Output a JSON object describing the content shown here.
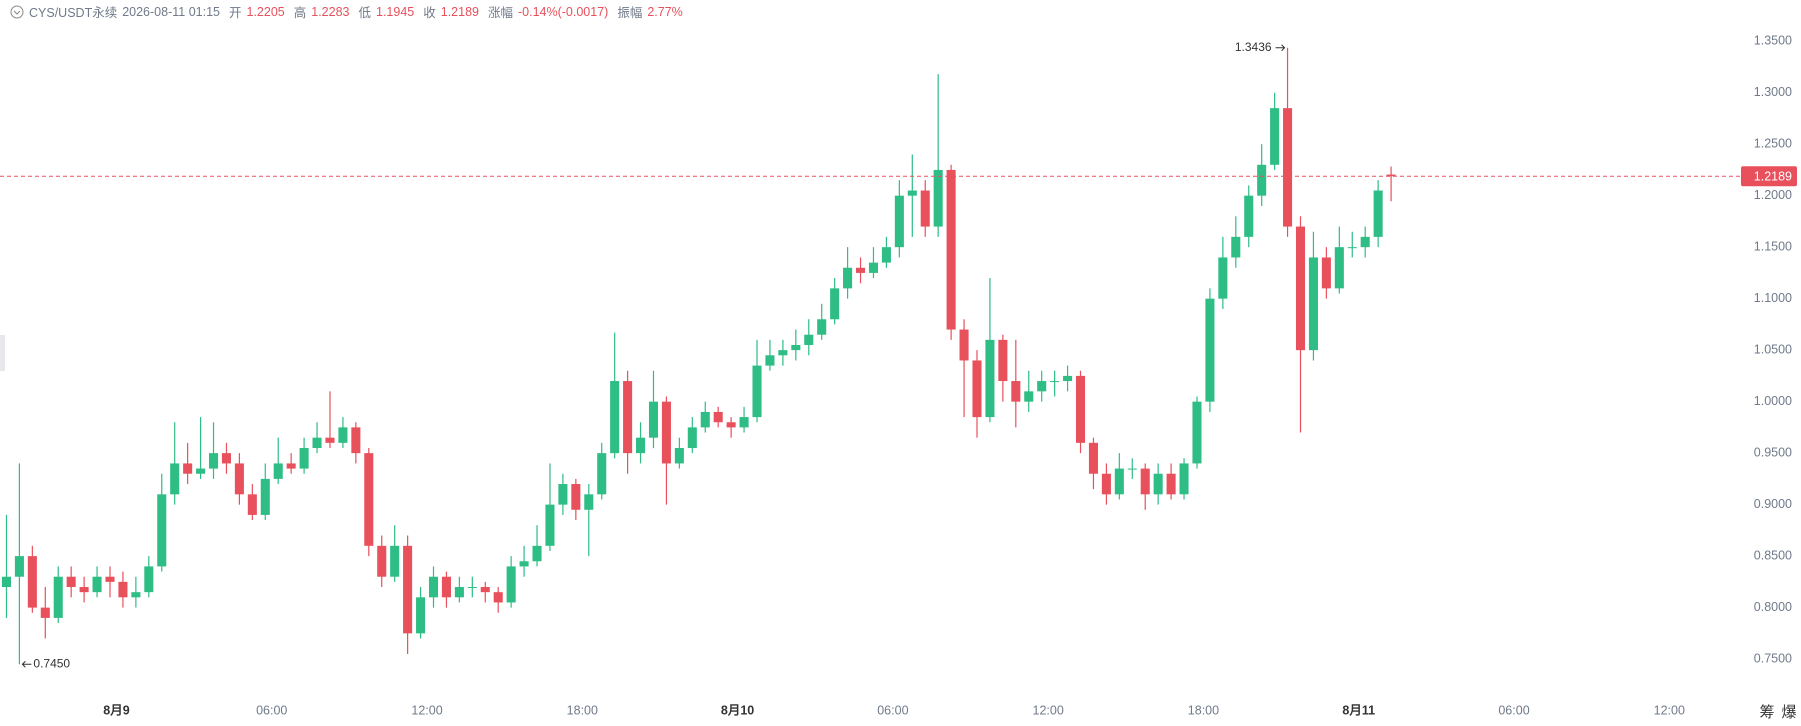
{
  "header": {
    "symbol": "CYS/USDT永续",
    "time": "2026-08-11 01:15",
    "open_label": "开",
    "high_label": "高",
    "low_label": "低",
    "close_label": "收",
    "change_label": "涨幅",
    "change": "-0.14%(-0.0017)",
    "amplitude_label": "振幅",
    "amplitude": "2.77%"
  },
  "toolbar": [
    "筹",
    "爆"
  ],
  "chart_data": {
    "type": "candlestick",
    "x": [
      -4.25,
      -3.75,
      -3.25,
      -2.75,
      -2.25,
      -1.75,
      -1.25,
      -0.75,
      -0.25,
      0.25,
      0.75,
      1.25,
      1.75,
      2.25,
      2.75,
      3.25,
      3.75,
      4.25,
      4.75,
      5.25,
      5.75,
      6.25,
      6.75,
      7.25,
      7.75,
      8.25,
      8.75,
      9.25,
      9.75,
      10.25,
      10.75,
      11.25,
      11.75,
      12.25,
      12.75,
      13.25,
      13.75,
      14.25,
      14.75,
      15.25,
      15.75,
      16.25,
      16.75,
      17.25,
      17.75,
      18.25,
      18.75,
      19.25,
      19.75,
      20.25,
      20.75,
      21.25,
      21.75,
      22.25,
      22.75,
      23.25,
      23.75,
      24.25,
      24.75,
      25.25,
      25.75,
      26.25,
      26.75,
      27.25,
      27.75,
      28.25,
      28.75,
      29.25,
      29.75,
      30.25,
      30.75,
      31.25,
      31.75,
      32.25,
      32.75,
      33.25,
      33.75,
      34.25,
      34.75,
      35.25,
      35.75,
      36.25,
      36.75,
      37.25,
      37.75,
      38.25,
      38.75,
      39.25,
      39.75,
      40.25,
      40.75,
      41.25,
      41.75,
      42.25,
      42.75,
      43.25,
      43.75,
      44.25,
      44.75,
      45.25,
      45.75,
      46.25,
      46.75,
      47.25,
      47.75,
      48.25,
      48.75,
      49.25
    ],
    "open": [
      0.82,
      0.83,
      0.85,
      0.8,
      0.79,
      0.83,
      0.82,
      0.815,
      0.83,
      0.825,
      0.81,
      0.815,
      0.84,
      0.91,
      0.94,
      0.93,
      0.935,
      0.95,
      0.94,
      0.91,
      0.89,
      0.925,
      0.94,
      0.935,
      0.955,
      0.965,
      0.96,
      0.975,
      0.95,
      0.86,
      0.83,
      0.86,
      0.775,
      0.81,
      0.83,
      0.81,
      0.82,
      0.82,
      0.815,
      0.805,
      0.84,
      0.845,
      0.86,
      0.9,
      0.92,
      0.895,
      0.91,
      0.95,
      1.02,
      0.95,
      0.965,
      1.0,
      0.94,
      0.955,
      0.975,
      0.99,
      0.98,
      0.975,
      0.985,
      1.035,
      1.045,
      1.05,
      1.055,
      1.065,
      1.08,
      1.11,
      1.13,
      1.125,
      1.135,
      1.15,
      1.2,
      1.205,
      1.17,
      1.225,
      1.07,
      1.04,
      0.985,
      1.06,
      1.02,
      1.0,
      1.01,
      1.02,
      1.02,
      1.025,
      0.96,
      0.93,
      0.91,
      0.935,
      0.935,
      0.91,
      0.93,
      0.91,
      0.94,
      1.0,
      1.1,
      1.14,
      1.16,
      1.2,
      1.23,
      1.285,
      1.17,
      1.05,
      1.14,
      1.11,
      1.15,
      1.15,
      1.16,
      1.2205
    ],
    "high": [
      0.89,
      0.94,
      0.86,
      0.82,
      0.84,
      0.84,
      0.83,
      0.84,
      0.84,
      0.835,
      0.83,
      0.85,
      0.93,
      0.98,
      0.96,
      0.985,
      0.98,
      0.96,
      0.95,
      0.92,
      0.94,
      0.965,
      0.95,
      0.965,
      0.98,
      1.01,
      0.985,
      0.98,
      0.955,
      0.87,
      0.88,
      0.87,
      0.82,
      0.84,
      0.835,
      0.83,
      0.83,
      0.825,
      0.82,
      0.85,
      0.86,
      0.88,
      0.94,
      0.93,
      0.925,
      0.92,
      0.96,
      1.067,
      1.03,
      0.98,
      1.03,
      1.005,
      0.965,
      0.985,
      1.0,
      0.995,
      0.985,
      0.995,
      1.06,
      1.06,
      1.06,
      1.07,
      1.08,
      1.095,
      1.12,
      1.15,
      1.14,
      1.15,
      1.16,
      1.215,
      1.24,
      1.215,
      1.318,
      1.23,
      1.08,
      1.05,
      1.12,
      1.065,
      1.06,
      1.03,
      1.03,
      1.03,
      1.035,
      1.03,
      0.965,
      0.94,
      0.95,
      0.945,
      0.94,
      0.94,
      0.94,
      0.945,
      1.005,
      1.11,
      1.16,
      1.18,
      1.21,
      1.25,
      1.3,
      1.3436,
      1.18,
      1.165,
      1.15,
      1.17,
      1.165,
      1.17,
      1.215,
      1.2283
    ],
    "low": [
      0.79,
      0.745,
      0.795,
      0.77,
      0.785,
      0.81,
      0.805,
      0.81,
      0.81,
      0.8,
      0.8,
      0.81,
      0.835,
      0.9,
      0.92,
      0.925,
      0.925,
      0.93,
      0.9,
      0.885,
      0.885,
      0.92,
      0.93,
      0.93,
      0.95,
      0.955,
      0.955,
      0.94,
      0.85,
      0.82,
      0.825,
      0.755,
      0.77,
      0.8,
      0.8,
      0.805,
      0.81,
      0.805,
      0.795,
      0.8,
      0.83,
      0.84,
      0.855,
      0.89,
      0.885,
      0.85,
      0.905,
      0.945,
      0.93,
      0.94,
      0.955,
      0.9,
      0.935,
      0.95,
      0.97,
      0.975,
      0.965,
      0.97,
      0.98,
      1.03,
      1.035,
      1.04,
      1.045,
      1.06,
      1.075,
      1.1,
      1.115,
      1.12,
      1.13,
      1.14,
      1.16,
      1.16,
      1.16,
      1.06,
      0.985,
      0.965,
      0.98,
      1.0,
      0.975,
      0.99,
      1.0,
      1.005,
      1.01,
      0.95,
      0.915,
      0.9,
      0.905,
      0.925,
      0.895,
      0.9,
      0.905,
      0.905,
      0.935,
      0.99,
      1.09,
      1.13,
      1.15,
      1.19,
      1.225,
      1.16,
      0.97,
      1.04,
      1.1,
      1.105,
      1.14,
      1.14,
      1.15,
      1.1945
    ],
    "close": [
      0.83,
      0.85,
      0.8,
      0.79,
      0.83,
      0.82,
      0.815,
      0.83,
      0.825,
      0.81,
      0.815,
      0.84,
      0.91,
      0.94,
      0.93,
      0.935,
      0.95,
      0.94,
      0.91,
      0.89,
      0.925,
      0.94,
      0.935,
      0.955,
      0.965,
      0.96,
      0.975,
      0.95,
      0.86,
      0.83,
      0.86,
      0.775,
      0.81,
      0.83,
      0.81,
      0.82,
      0.82,
      0.815,
      0.805,
      0.84,
      0.845,
      0.86,
      0.9,
      0.92,
      0.895,
      0.91,
      0.95,
      1.02,
      0.95,
      0.965,
      1.0,
      0.94,
      0.955,
      0.975,
      0.99,
      0.98,
      0.975,
      0.985,
      1.035,
      1.045,
      1.05,
      1.055,
      1.065,
      1.08,
      1.11,
      1.13,
      1.125,
      1.135,
      1.15,
      1.2,
      1.205,
      1.17,
      1.225,
      1.07,
      1.04,
      0.985,
      1.06,
      1.02,
      1.0,
      1.01,
      1.02,
      1.02,
      1.025,
      0.96,
      0.93,
      0.91,
      0.935,
      0.935,
      0.91,
      0.93,
      0.91,
      0.94,
      1.0,
      1.1,
      1.14,
      1.16,
      1.2,
      1.23,
      1.285,
      1.17,
      1.05,
      1.14,
      1.11,
      1.15,
      1.15,
      1.16,
      1.205,
      1.2189
    ],
    "up_color": "#2ebd85",
    "down_color": "#e8505b",
    "max_label": "1.3436",
    "min_label": "0.7450",
    "xlim": [
      -4.5,
      62.5
    ],
    "xticks": [
      {
        "value": 0,
        "label": "8月9"
      },
      {
        "value": 6,
        "label": "06:00"
      },
      {
        "value": 12,
        "label": "12:00"
      },
      {
        "value": 18,
        "label": "18:00"
      },
      {
        "value": 24,
        "label": "8月10"
      },
      {
        "value": 30,
        "label": "06:00"
      },
      {
        "value": 36,
        "label": "12:00"
      },
      {
        "value": 42,
        "label": "18:00"
      },
      {
        "value": 48,
        "label": "8月11"
      },
      {
        "value": 54,
        "label": "06:00"
      },
      {
        "value": 60,
        "label": "12:00"
      }
    ],
    "ylim": [
      0.72,
      1.39
    ],
    "yticks": [
      {
        "value": 0.75,
        "label": "0.7500"
      },
      {
        "value": 0.8,
        "label": "0.8000"
      },
      {
        "value": 0.85,
        "label": "0.8500"
      },
      {
        "value": 0.9,
        "label": "0.9000"
      },
      {
        "value": 0.95,
        "label": "0.9500"
      },
      {
        "value": 1.0,
        "label": "1.0000"
      },
      {
        "value": 1.05,
        "label": "1.0500"
      },
      {
        "value": 1.1,
        "label": "1.1000"
      },
      {
        "value": 1.15,
        "label": "1.1500"
      },
      {
        "value": 1.2,
        "label": "1.2000"
      },
      {
        "value": 1.25,
        "label": "1.2500"
      },
      {
        "value": 1.3,
        "label": "1.3000"
      },
      {
        "value": 1.35,
        "label": "1.3500"
      }
    ]
  }
}
